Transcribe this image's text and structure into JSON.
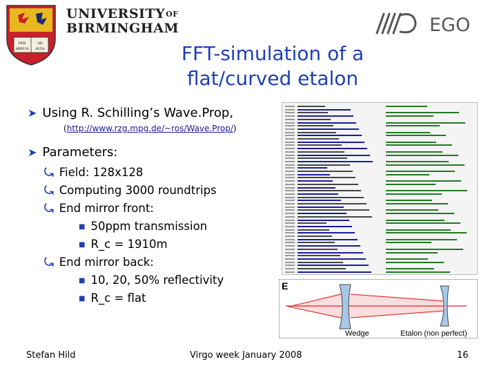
{
  "header": {
    "university_line1": "UNIVERSITY",
    "university_of": "OF",
    "university_line2": "BIRMINGHAM",
    "ego_text": "EGO"
  },
  "title": {
    "line1": "FFT-simulation of a",
    "line2": "flat/curved etalon"
  },
  "bullets": {
    "using": "Using R. Schilling’s Wave.Prop,",
    "url_open": "(",
    "url": "http://www.rzg.mpg.de/~ros/Wave.Prop/",
    "url_close": ")",
    "parameters": "Parameters:",
    "field": "Field: 128x128",
    "computing": "Computing 3000 roundtrips",
    "end_front": "End mirror front:",
    "transmission": "50ppm transmission",
    "rc_front": "R_c = 1910m",
    "end_back": "End mirror back:",
    "reflectivity": "10, 20, 50% reflectivity",
    "rc_back": "R_c = flat"
  },
  "diagram": {
    "label_e": "E",
    "label_wedge": "Wedge",
    "label_etalon": "Etalon (non perfect)",
    "colors": {
      "beam": "#e02020",
      "glass": "#a8c8e8",
      "border": "#444444"
    }
  },
  "footer": {
    "author": "Stefan Hild",
    "event": "Virgo week January 2008",
    "page": "16"
  },
  "colors": {
    "title": "#1f3fb3",
    "bullet": "#1f3fb3",
    "crest_red": "#c8202a",
    "crest_gold": "#e8b820"
  }
}
